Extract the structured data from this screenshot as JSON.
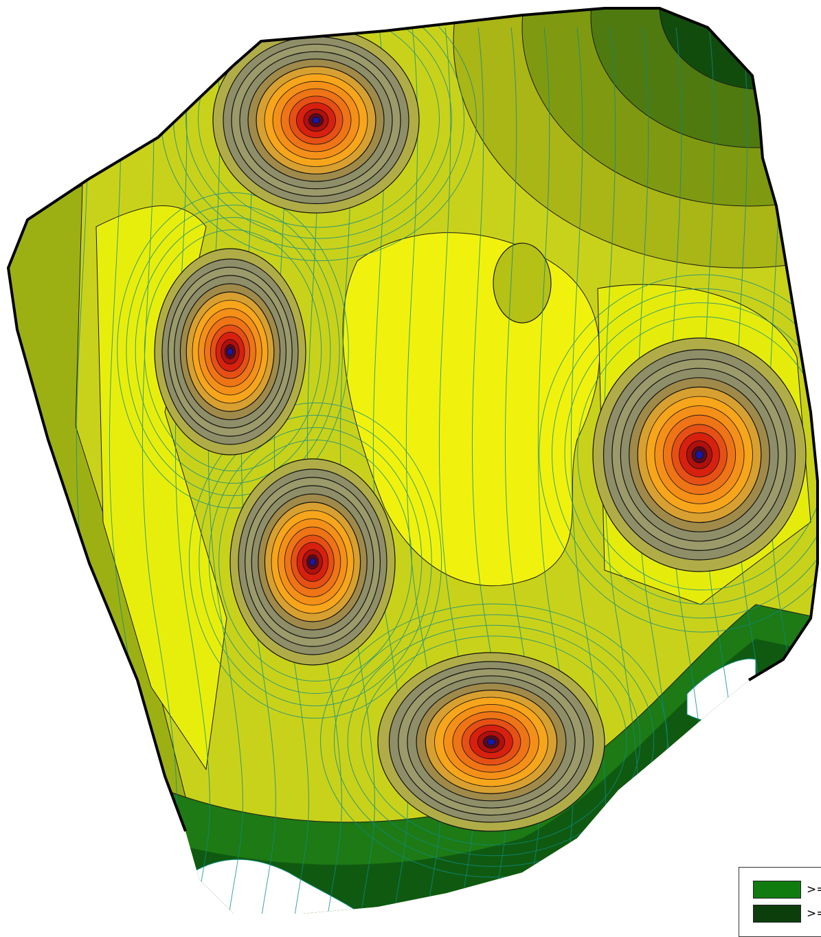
{
  "map": {
    "colors": {
      "sea": "#ffffff",
      "boundary": "#000000",
      "contour_fine": "#0e8b86",
      "contour_major": "#1a1a1a",
      "dark_green": "#0f4a0c",
      "green": "#1f7a12",
      "olive": "#9aae12",
      "light_olive": "#c4cd18",
      "yellow": "#eef20a",
      "khaki": "#8e8e68",
      "orange": "#f7a51b",
      "red": "#d8200f",
      "core": "#1818a8"
    },
    "peaks_icon": "radial-contour-peak",
    "peak_count": 5
  },
  "legend": {
    "items": [
      {
        "label": ">=",
        "color": "#107c10",
        "icon": "swatch-green"
      },
      {
        "label": ">=",
        "color": "#0b3e0b",
        "icon": "swatch-dark-green"
      }
    ]
  }
}
